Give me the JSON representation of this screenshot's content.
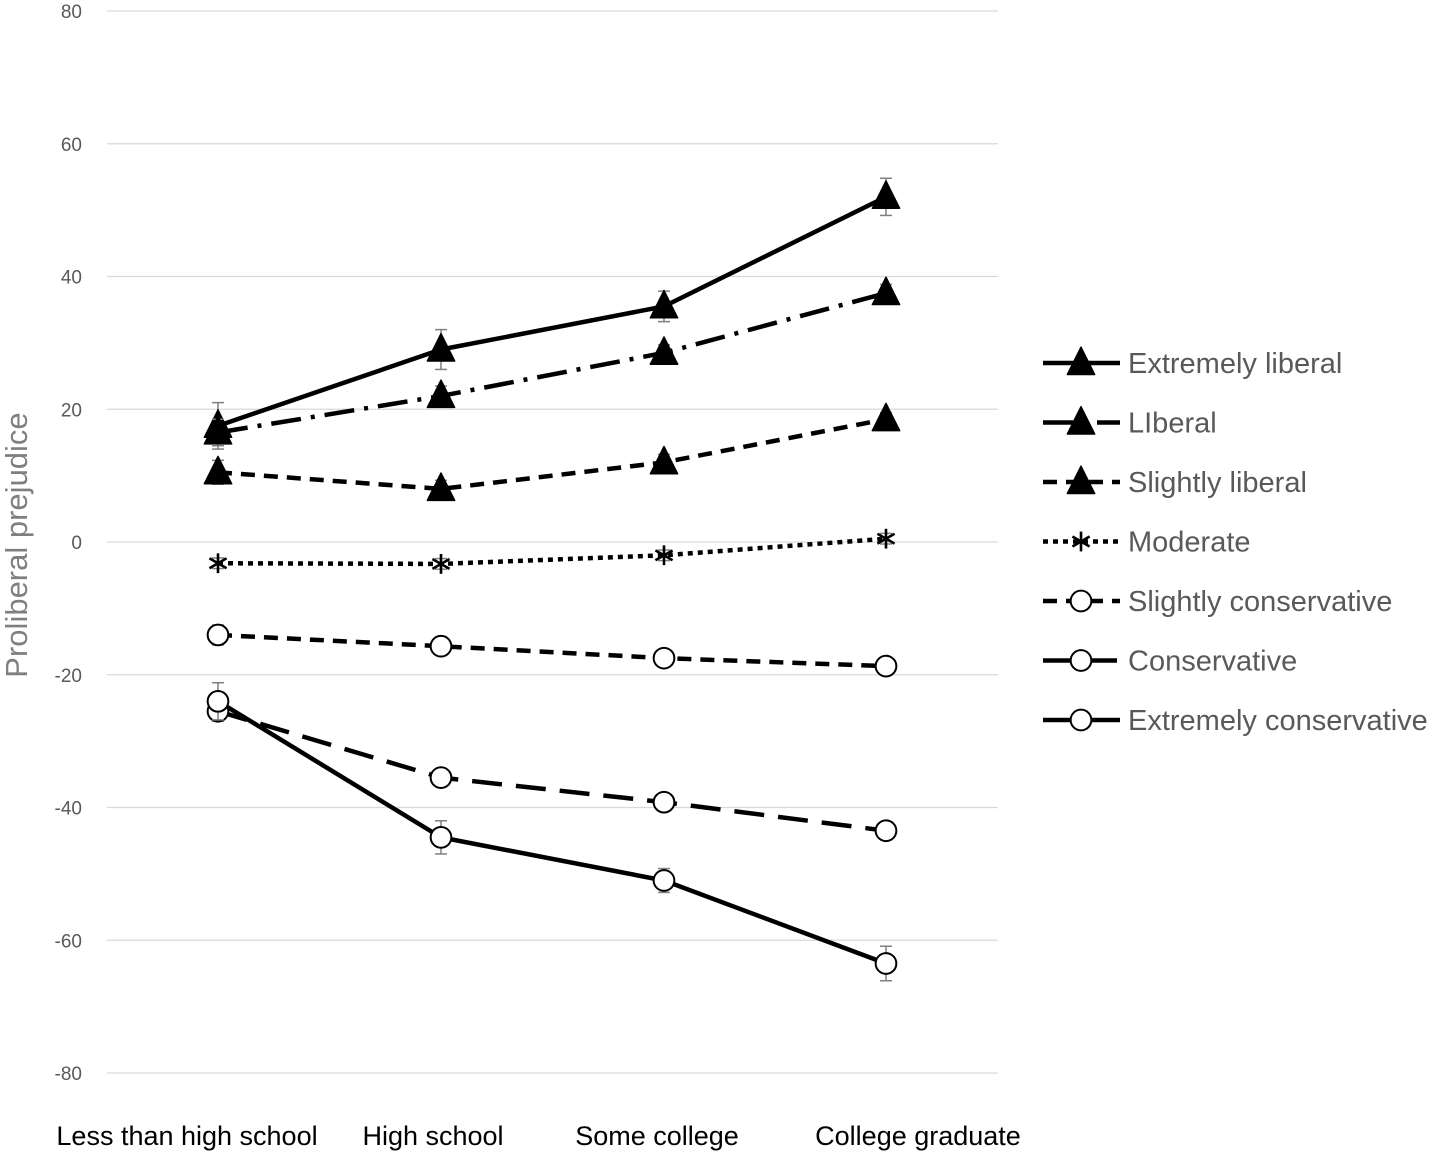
{
  "chart_data": {
    "type": "line",
    "ylabel": "Proliberal prejudice",
    "xlabel": "",
    "ylim": [
      -80,
      80
    ],
    "yticks": [
      80,
      60,
      40,
      20,
      0,
      -20,
      -40,
      -60,
      -80
    ],
    "ytick_labels": [
      "80",
      "60",
      "40",
      "20",
      "0",
      "-20",
      "-40",
      "-60",
      "-80"
    ],
    "categories": [
      "Less than high school",
      "High school",
      "Some college",
      "College graduate"
    ],
    "grid": true,
    "legend_position": "right",
    "series": [
      {
        "name": "Extremely liberal",
        "values": [
          17.5,
          29,
          35.5,
          52
        ],
        "errors": [
          3.5,
          3,
          2.3,
          2.8
        ],
        "marker": "triangle",
        "dash": "solid"
      },
      {
        "name": "LIberal",
        "values": [
          16.5,
          22,
          28.5,
          37.5
        ],
        "errors": [
          2,
          1.5,
          1.2,
          1.3
        ],
        "marker": "triangle",
        "dash": "long-dash-dot"
      },
      {
        "name": "Slightly liberal",
        "values": [
          10.5,
          8,
          12,
          18.5
        ],
        "errors": [
          1.8,
          1.3,
          1.2,
          1
        ],
        "marker": "triangle",
        "dash": "dash"
      },
      {
        "name": "Moderate",
        "values": [
          -3.2,
          -3.3,
          -2,
          0.5
        ],
        "errors": [
          0.8,
          0.8,
          0.8,
          0.8
        ],
        "marker": "asterisk",
        "dash": "round-dot"
      },
      {
        "name": "Slightly conservative",
        "values": [
          -14,
          -15.7,
          -17.5,
          -18.7
        ],
        "errors": [
          1.5,
          1,
          1,
          1
        ],
        "marker": "circle",
        "dash": "dash"
      },
      {
        "name": "Conservative",
        "values": [
          -25.5,
          -35.5,
          -39.2,
          -43.5
        ],
        "errors": [
          1.5,
          1.2,
          1,
          1
        ],
        "marker": "circle",
        "dash": "long-dash"
      },
      {
        "name": "Extremely conservative",
        "values": [
          -24,
          -44.5,
          -51,
          -63.5
        ],
        "errors": [
          2.8,
          2.5,
          1.8,
          2.6
        ],
        "marker": "circle",
        "dash": "solid"
      }
    ]
  }
}
